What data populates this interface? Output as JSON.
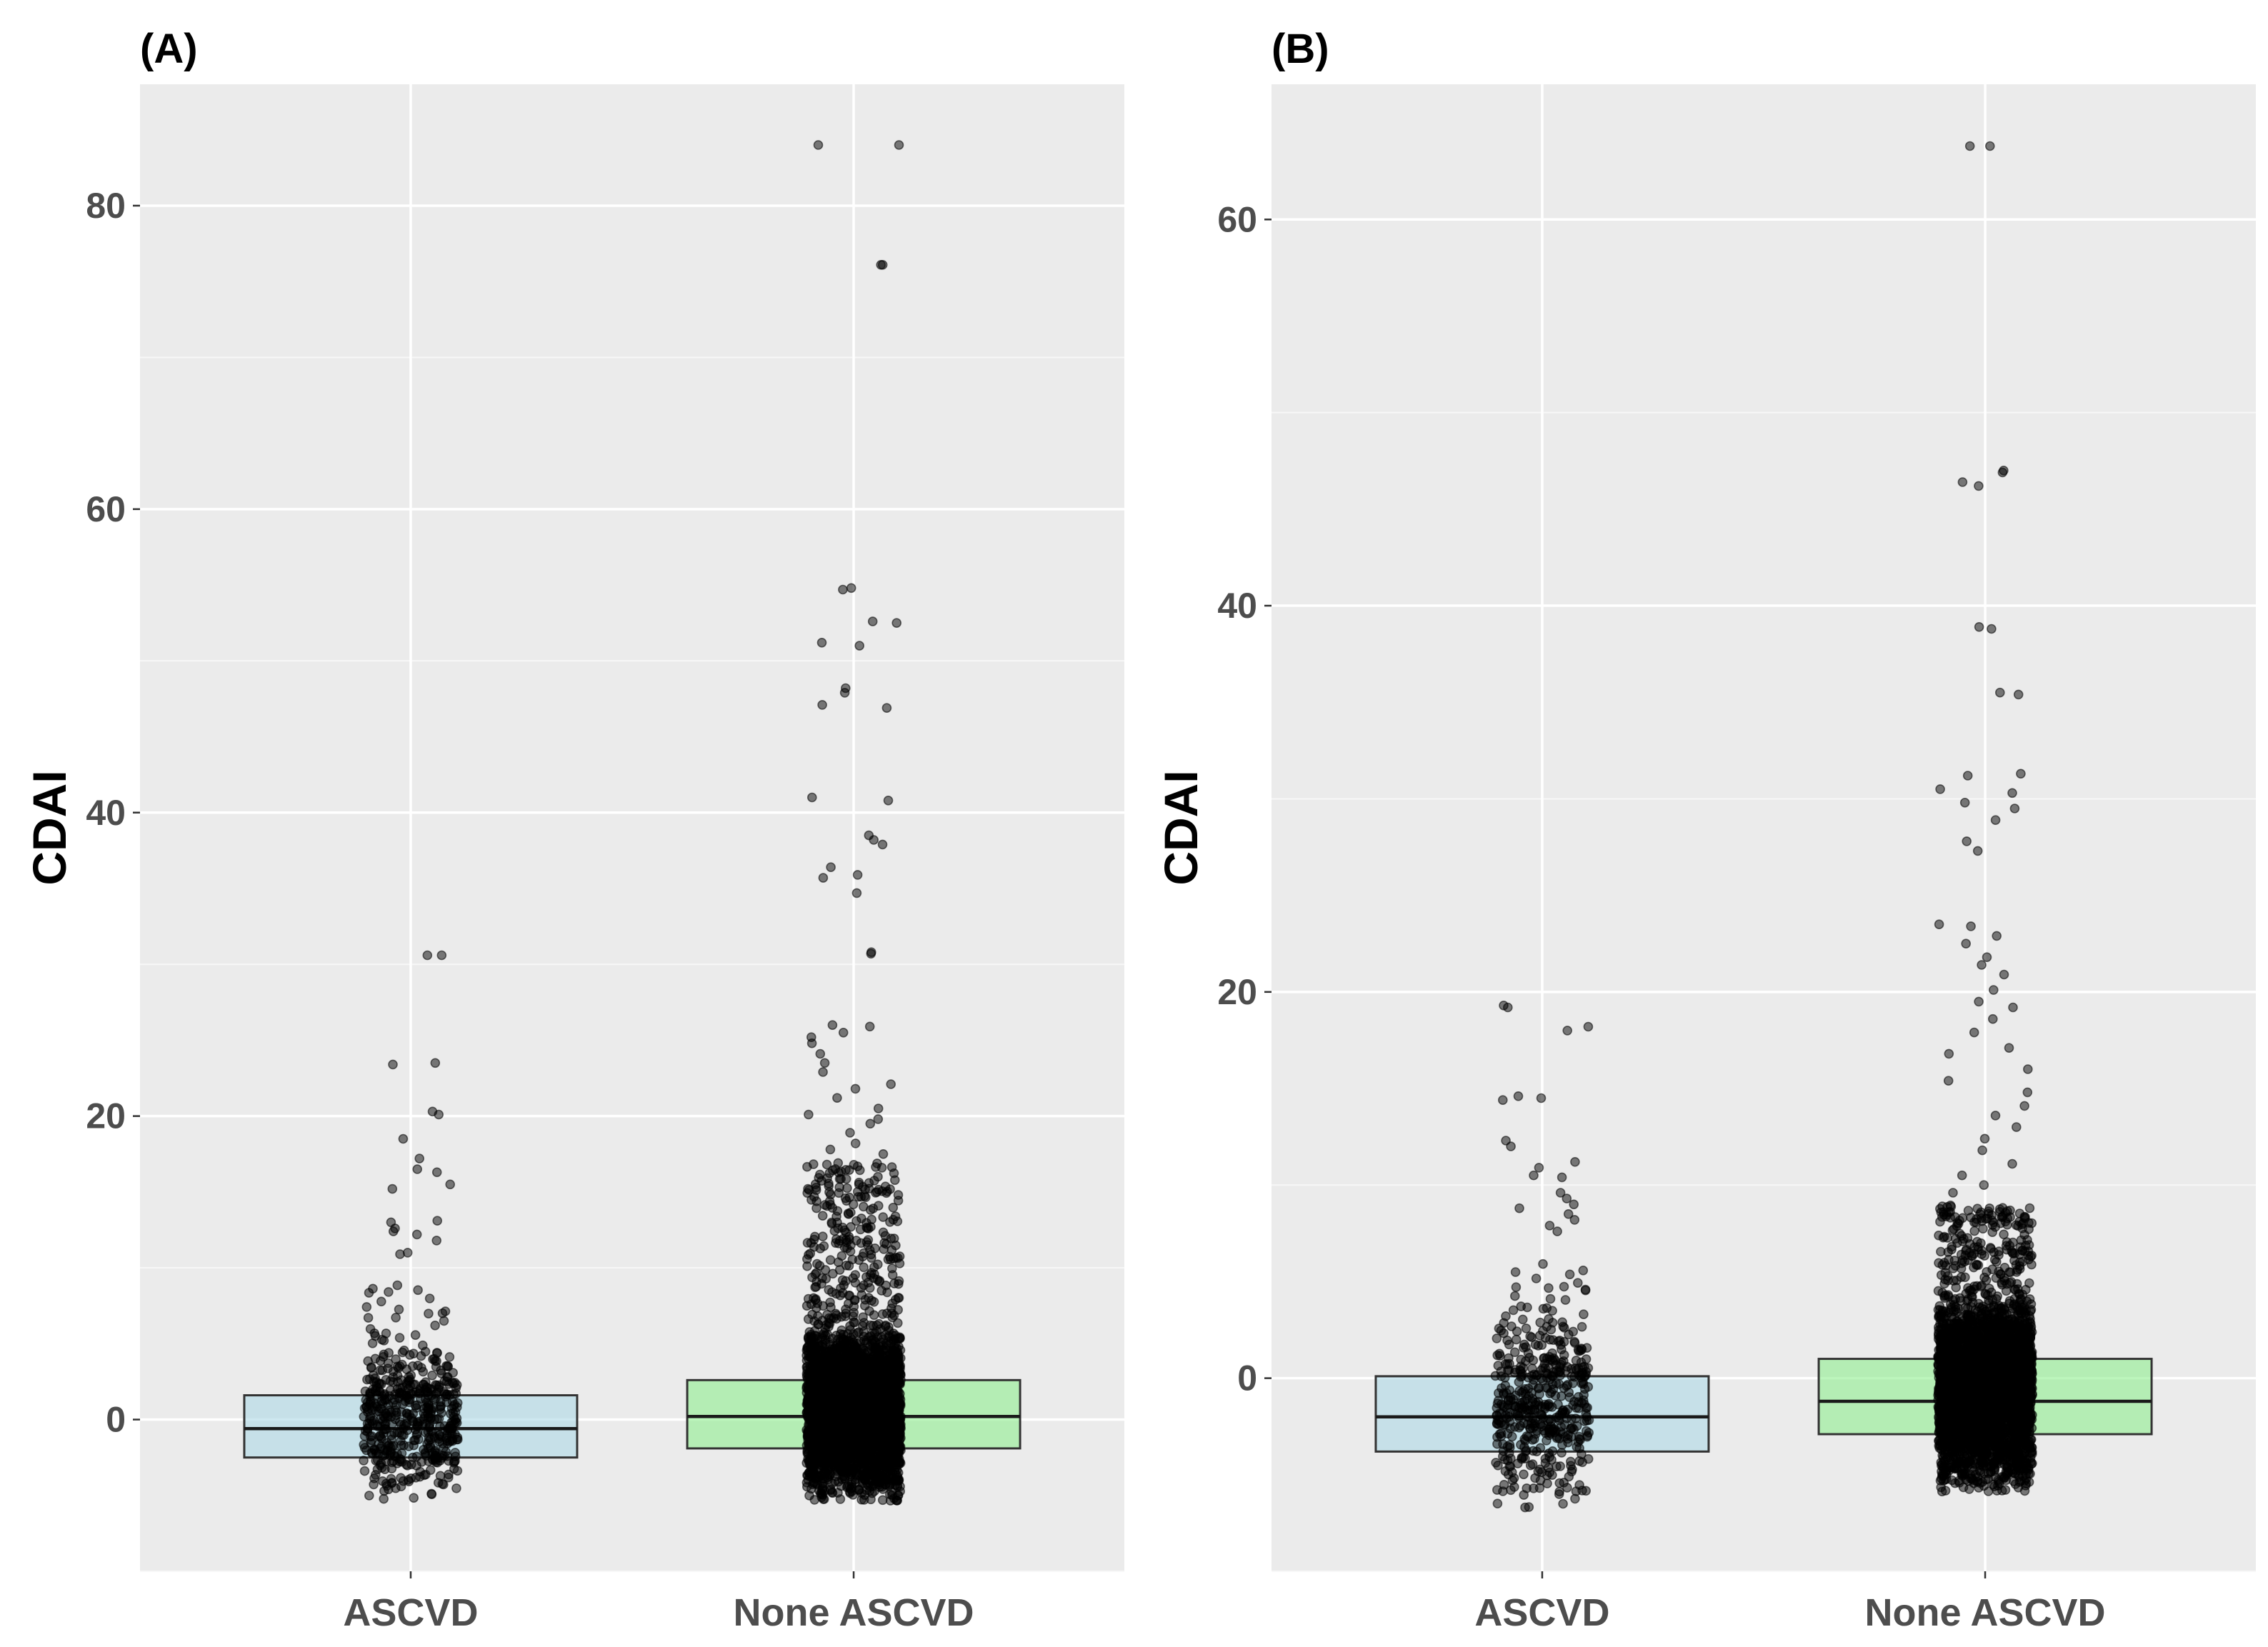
{
  "chart_data": [
    {
      "type": "box",
      "panel_label": "(A)",
      "title": "",
      "xlabel": "",
      "ylabel": "CDAI",
      "ylim": [
        -10,
        88
      ],
      "yticks": [
        0,
        20,
        40,
        60,
        80
      ],
      "ytick_labels": [
        "0",
        "20",
        "40",
        "60",
        "80"
      ],
      "grid": true,
      "categories": [
        "ASCVD",
        "None ASCVD"
      ],
      "boxes": [
        {
          "group": "ASCVD",
          "q1": -2.5,
          "median": -0.6,
          "q3": 1.6,
          "fill": "#add8e6",
          "points": {
            "n": 520,
            "ymin": -5.8,
            "dense_top": 9,
            "outliers": [
              30.6,
              30.6,
              23.5,
              23.4,
              20.3,
              20.1,
              18.5,
              17.2,
              16.5,
              16.3,
              15.2,
              15.5,
              13.1,
              13.0,
              12.6,
              12.4,
              12.2,
              11.8,
              11.0,
              10.9
            ]
          }
        },
        {
          "group": "None ASCVD",
          "q1": -1.9,
          "median": 0.2,
          "q3": 2.6,
          "fill": "#90ee90",
          "points": {
            "n": 3400,
            "ymin": -6.8,
            "dense_top": 17,
            "outliers": [
              84.0,
              84.0,
              76.1,
              76.1,
              54.8,
              54.7,
              52.6,
              52.5,
              51.2,
              51.0,
              48.2,
              47.9,
              47.1,
              46.9,
              41.0,
              40.8,
              38.5,
              38.2,
              37.9,
              36.4,
              35.9,
              35.7,
              34.7,
              30.8,
              30.7,
              26.0,
              25.9,
              25.5,
              25.2,
              24.8,
              24.1,
              23.5,
              22.9,
              22.1,
              21.8,
              21.2,
              20.5,
              20.1,
              19.8,
              19.5,
              18.9,
              18.2,
              17.8,
              17.5
            ]
          }
        }
      ]
    },
    {
      "type": "box",
      "panel_label": "(B)",
      "title": "",
      "xlabel": "",
      "ylabel": "CDAI",
      "ylim": [
        -10,
        67
      ],
      "yticks": [
        0,
        20,
        40,
        60
      ],
      "ytick_labels": [
        "0",
        "20",
        "40",
        "60"
      ],
      "grid": true,
      "categories": [
        "ASCVD",
        "None ASCVD"
      ],
      "boxes": [
        {
          "group": "ASCVD",
          "q1": -3.8,
          "median": -2.0,
          "q3": 0.1,
          "fill": "#add8e6",
          "points": {
            "n": 480,
            "ymin": -6.8,
            "dense_top": 6,
            "outliers": [
              19.3,
              19.2,
              18.2,
              18.0,
              14.6,
              14.5,
              14.4,
              12.3,
              12.0,
              11.2,
              10.9,
              10.5,
              10.4,
              9.6,
              9.3,
              9.0,
              8.8,
              8.5,
              8.2,
              7.9,
              7.6
            ]
          }
        },
        {
          "group": "None ASCVD",
          "q1": -2.9,
          "median": -1.2,
          "q3": 1.0,
          "fill": "#90ee90",
          "points": {
            "n": 3600,
            "ymin": -6.8,
            "dense_top": 9,
            "outliers": [
              63.8,
              63.8,
              47.0,
              46.9,
              46.4,
              46.2,
              38.9,
              38.8,
              35.5,
              35.4,
              31.3,
              31.2,
              30.5,
              30.3,
              29.8,
              29.5,
              28.9,
              27.8,
              27.3,
              23.5,
              23.4,
              22.9,
              22.5,
              21.8,
              21.4,
              20.9,
              20.1,
              19.5,
              19.2,
              18.6,
              17.9,
              17.1,
              16.8,
              16.0,
              15.4,
              14.8,
              14.1,
              13.6,
              13.0,
              12.4,
              11.8,
              11.1,
              10.5,
              10.0,
              9.6
            ]
          }
        }
      ]
    }
  ]
}
